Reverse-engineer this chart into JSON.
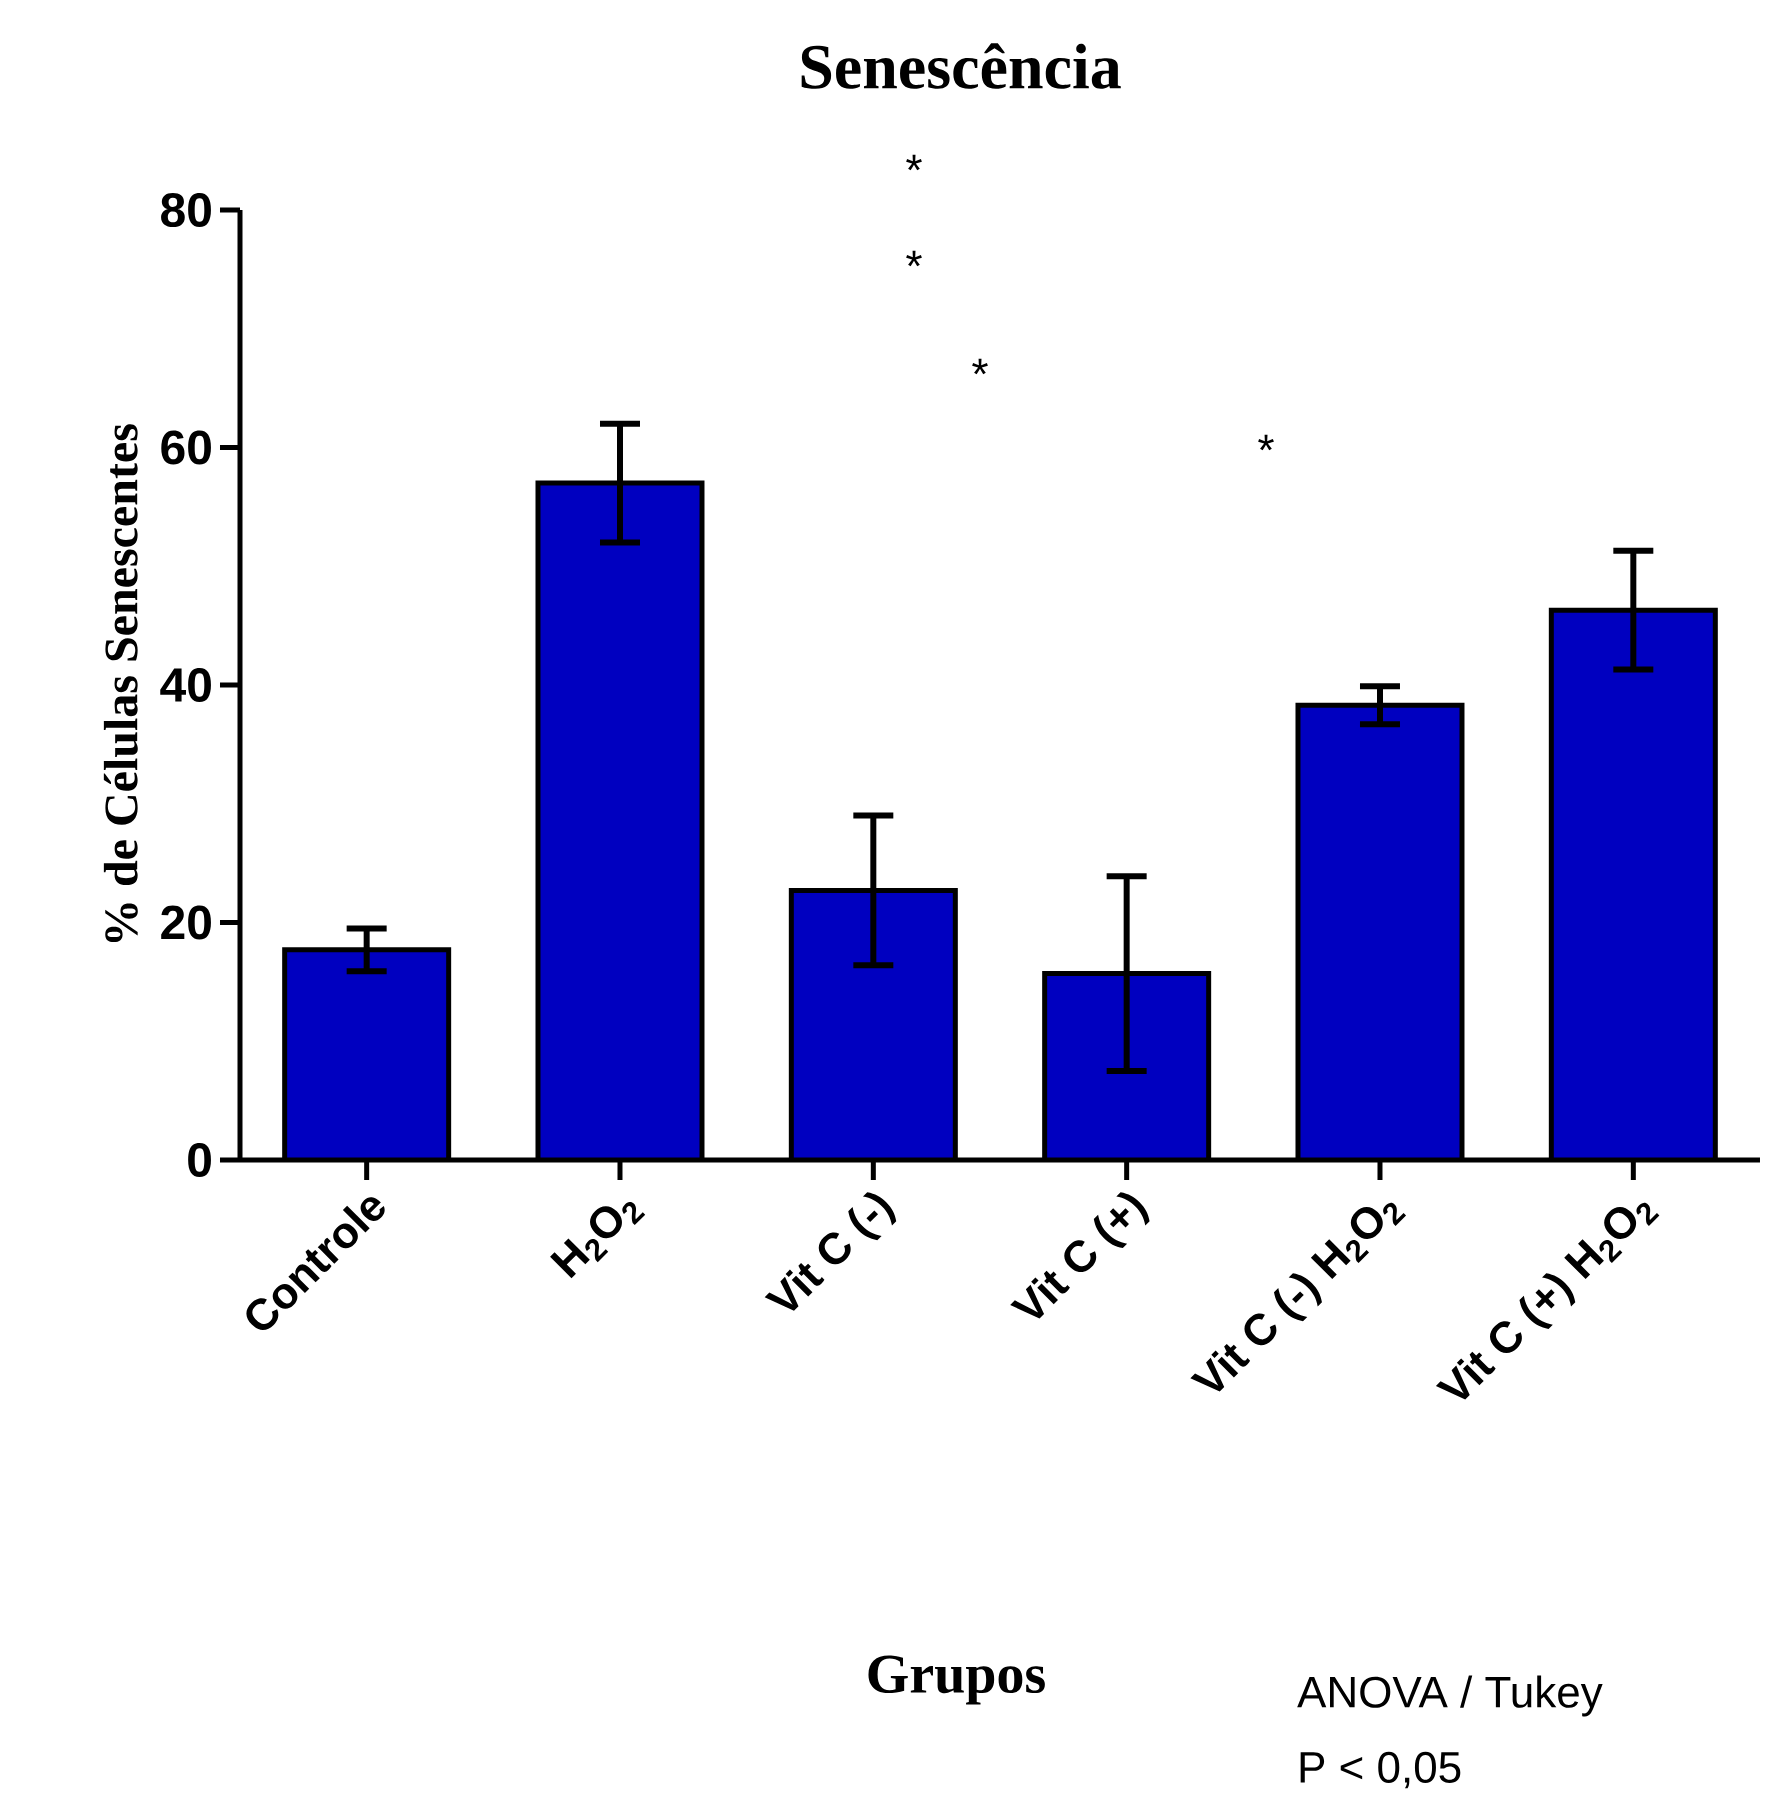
{
  "chart_data": {
    "type": "bar",
    "title": "Senescência",
    "xlabel": "Grupos",
    "ylabel": "% de Células Senescentes",
    "categories": [
      "Controle",
      "H$_{2}$O$_{2}$",
      "Vit C (-)",
      "Vit C (+)",
      "Vit C (-) H$_{2}$O$_{2}$",
      "Vit C (+) H$_{2}$O$_{2}$"
    ],
    "values": [
      17.7,
      57,
      22.7,
      15.7,
      38.3,
      46.3
    ],
    "errors": [
      1.8,
      5,
      6.3,
      8.2,
      1.6,
      5
    ],
    "color": "#0000c0",
    "ylim": [
      0,
      80
    ],
    "yticks": [
      0,
      20,
      40,
      60,
      80
    ],
    "annotations": [
      "*",
      "*",
      "*",
      "*",
      "ANOVA / Tukey",
      "P < 0,05"
    ]
  }
}
